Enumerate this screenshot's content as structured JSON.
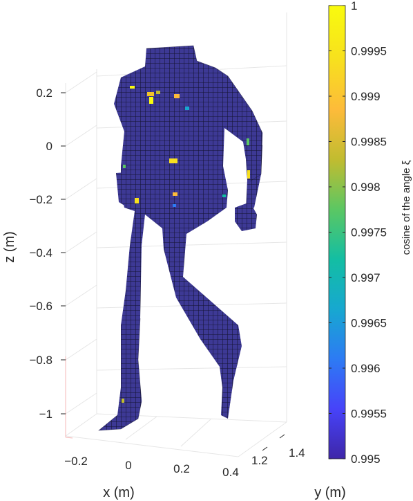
{
  "chart_data": {
    "type": "scatter",
    "subtype": "3d-surface-voxel",
    "title": "",
    "xlabel": "x (m)",
    "ylabel": "y (m)",
    "zlabel": "z (m)",
    "x_ticks": [
      "−0.2",
      "0",
      "0.2",
      "0.4"
    ],
    "y_ticks": [
      "1.2",
      "1.4"
    ],
    "z_ticks": [
      "0.2",
      "0",
      "−0.2",
      "−0.4",
      "−0.6",
      "−0.8",
      "−1"
    ],
    "zlim": [
      -1.1,
      0.3
    ],
    "grid": true,
    "colorbar": {
      "label": "cosine of the angle ξ",
      "ticks": [
        "1",
        "0.9995",
        "0.999",
        "0.9985",
        "0.998",
        "0.9975",
        "0.997",
        "0.9965",
        "0.996",
        "0.9955",
        "0.995"
      ],
      "range": [
        0.995,
        1
      ],
      "colormap": "parula",
      "colors": [
        "#3e26a8",
        "#4743f9",
        "#2d7bf4",
        "#17a8d0",
        "#13bea3",
        "#5bc763",
        "#c1bc30",
        "#fdbb3a",
        "#f7e01e",
        "#f9fb0e"
      ]
    },
    "surface_color": "#3d3995",
    "surface_value_approx": 0.995,
    "highlight_values_approx": [
      1,
      0.9995,
      0.999,
      0.998,
      0.997
    ]
  }
}
